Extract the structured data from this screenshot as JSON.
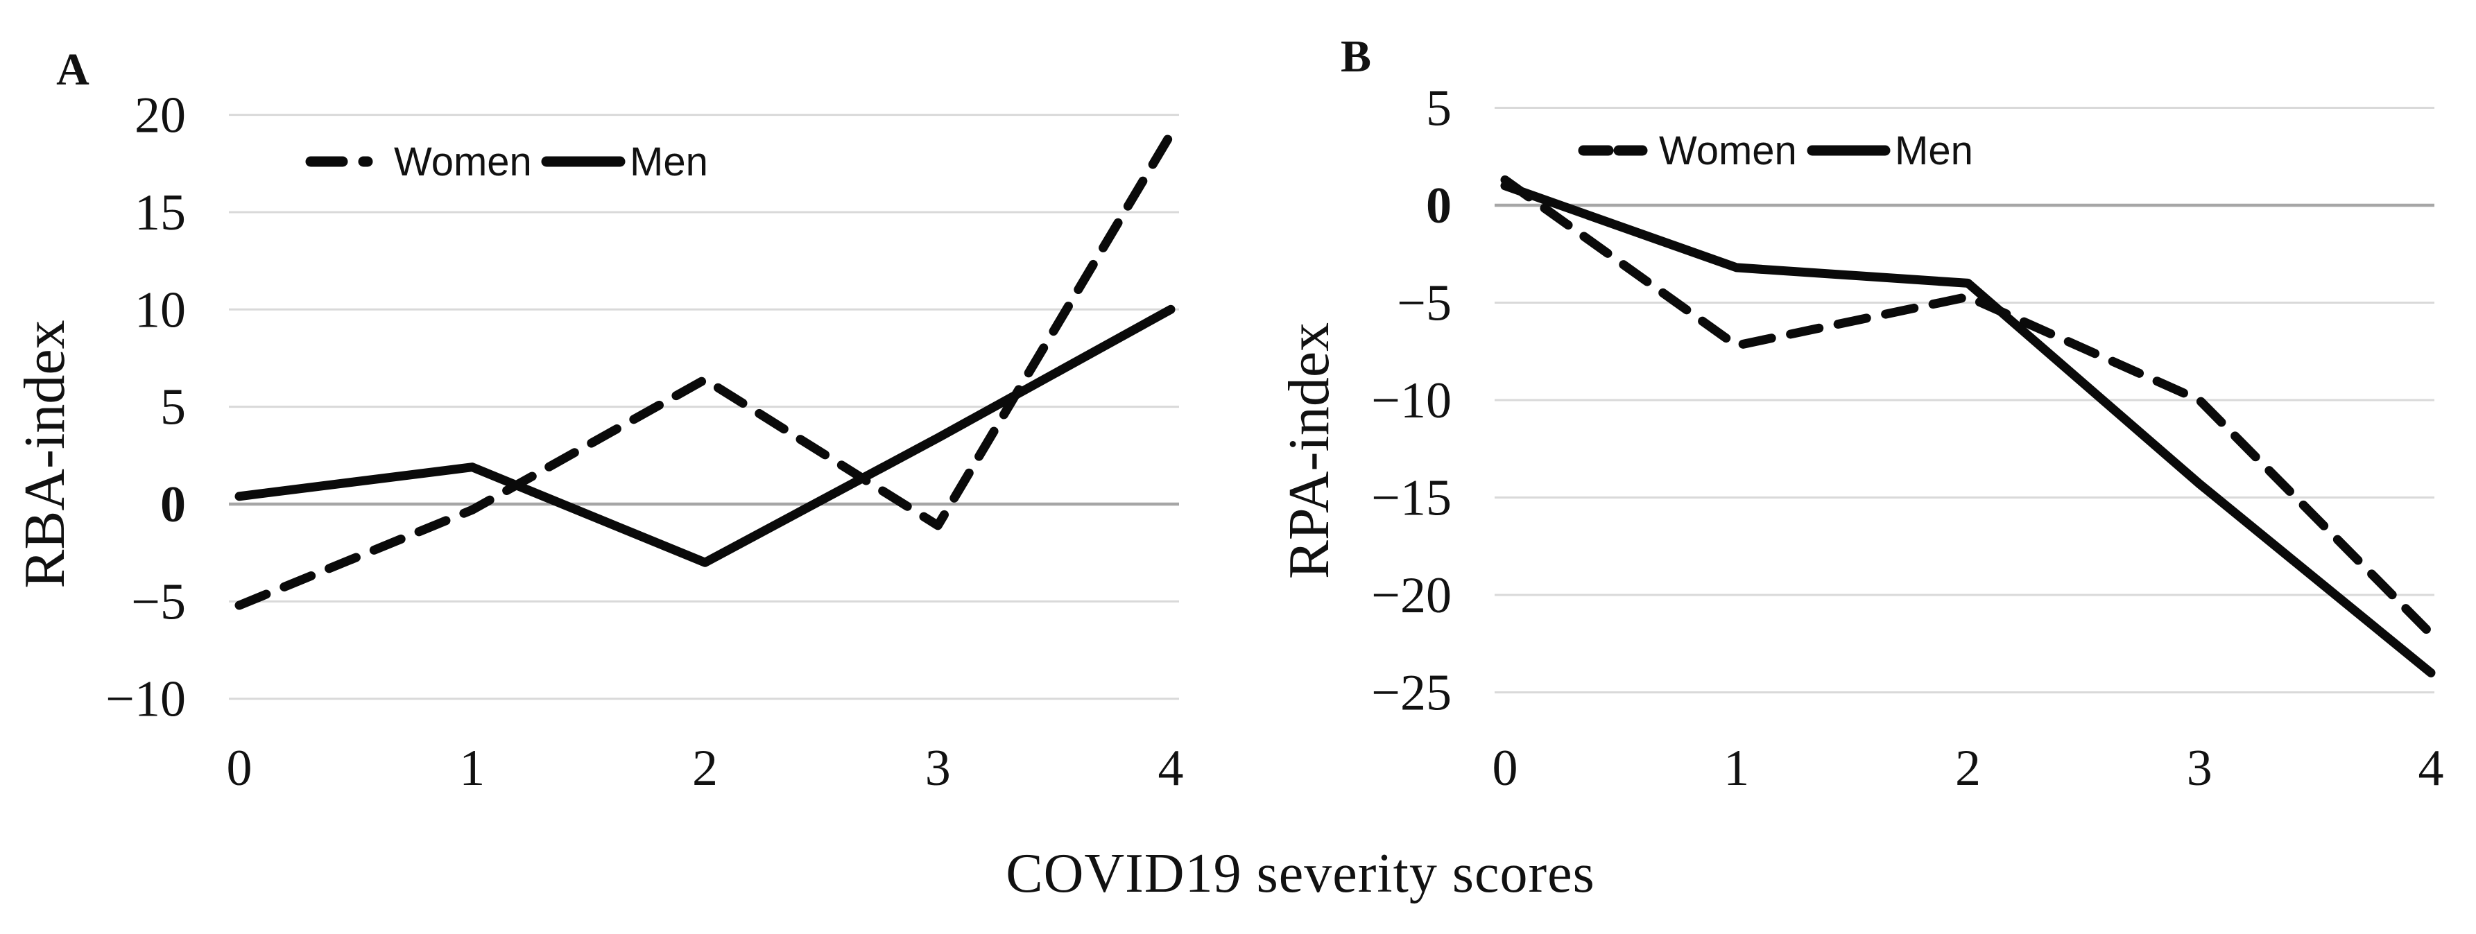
{
  "x_axis_title": "COVID19 severity scores",
  "legend": {
    "women_label": "Women",
    "men_label": "Men"
  },
  "colors": {
    "line": "#0a0a0a",
    "gridline": "#d9d9d9",
    "zero_line": "#a6a6a6",
    "text": "#111111",
    "background": "#ffffff"
  },
  "chart_data": [
    {
      "type": "line",
      "panel": "A",
      "title": "",
      "ylabel": "RBA-index",
      "xlabel": "COVID19 severity scores",
      "x": [
        0,
        1,
        2,
        3,
        4
      ],
      "xtick_labels": [
        "0",
        "1",
        "2",
        "3",
        "4"
      ],
      "ytick_values": [
        20,
        15,
        10,
        5,
        0,
        -5,
        -10
      ],
      "ytick_labels": [
        "20",
        "15",
        "10",
        "5",
        "0",
        "−5",
        "−10"
      ],
      "ylim": [
        -10,
        20
      ],
      "grid": true,
      "zero_line": true,
      "legend_position": "top",
      "series": [
        {
          "name": "Women",
          "style": "dashed",
          "values": [
            -5.2,
            -0.3,
            6.4,
            -1.1,
            19
          ]
        },
        {
          "name": "Men",
          "style": "solid",
          "values": [
            0.4,
            1.9,
            -3,
            3.4,
            10
          ]
        }
      ]
    },
    {
      "type": "line",
      "panel": "B",
      "title": "",
      "ylabel": "RPA-index",
      "xlabel": "COVID19 severity scores",
      "x": [
        0,
        1,
        2,
        3,
        4
      ],
      "xtick_labels": [
        "0",
        "1",
        "2",
        "3",
        "4"
      ],
      "ytick_values": [
        5,
        0,
        -5,
        -10,
        -15,
        -20,
        -25
      ],
      "ytick_labels": [
        "5",
        "0",
        "−5",
        "−10",
        "−15",
        "−20",
        "−25"
      ],
      "ylim": [
        -25,
        5
      ],
      "grid": true,
      "zero_line": true,
      "legend_position": "top",
      "series": [
        {
          "name": "Women",
          "style": "dashed",
          "values": [
            1.3,
            -7.2,
            -4.7,
            -10,
            -22
          ]
        },
        {
          "name": "Men",
          "style": "solid",
          "values": [
            1.0,
            -3.2,
            -4,
            -14.3,
            -24
          ]
        }
      ]
    }
  ]
}
